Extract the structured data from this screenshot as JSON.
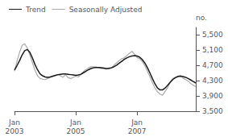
{
  "chart_data": {
    "type": "line",
    "categories": [
      "Jan\n2003",
      null,
      null,
      null,
      null,
      null,
      null,
      null,
      null,
      null,
      null,
      null,
      null,
      null,
      null,
      null,
      null,
      null,
      null,
      null,
      null,
      null,
      null,
      null,
      "Jan\n2005",
      null,
      null,
      null,
      null,
      null,
      null,
      null,
      null,
      null,
      null,
      null,
      null,
      null,
      null,
      null,
      null,
      null,
      null,
      null,
      null,
      null,
      null,
      null,
      "Jan\n2007",
      null,
      null,
      null,
      null,
      null,
      null,
      null,
      null,
      null,
      null,
      null,
      null,
      null,
      null,
      null,
      null,
      null,
      null,
      null,
      null,
      null,
      null,
      null
    ],
    "ylabel": "no.",
    "ylim": [
      3500,
      5700
    ],
    "yticks": [
      3500,
      3900,
      4300,
      4700,
      5100,
      5500
    ],
    "grid": false,
    "legend": "upper left",
    "series": [
      {
        "name": "Trend",
        "color": "#1a1a1a",
        "values": [
          4580,
          4700,
          4830,
          4980,
          5090,
          5120,
          5050,
          4900,
          4730,
          4590,
          4480,
          4430,
          4400,
          4390,
          4400,
          4420,
          4440,
          4460,
          4470,
          4480,
          4480,
          4470,
          4460,
          4450,
          4440,
          4450,
          4470,
          4510,
          4550,
          4590,
          4620,
          4640,
          4650,
          4650,
          4640,
          4630,
          4620,
          4620,
          4640,
          4670,
          4710,
          4760,
          4810,
          4860,
          4900,
          4930,
          4950,
          4960,
          4950,
          4920,
          4860,
          4770,
          4650,
          4510,
          4360,
          4220,
          4110,
          4060,
          4060,
          4110,
          4180,
          4260,
          4330,
          4380,
          4410,
          4420,
          4410,
          4390,
          4360,
          4320,
          4280,
          4240
        ]
      },
      {
        "name": "Seasonally Adjusted",
        "color": "#aaaaaa",
        "values": [
          4550,
          4820,
          5050,
          5230,
          5270,
          5160,
          4980,
          4780,
          4580,
          4430,
          4360,
          4340,
          4330,
          4360,
          4390,
          4410,
          4430,
          4460,
          4430,
          4390,
          4460,
          4380,
          4360,
          4390,
          4420,
          4400,
          4460,
          4540,
          4590,
          4640,
          4670,
          4660,
          4660,
          4640,
          4620,
          4620,
          4600,
          4640,
          4640,
          4710,
          4770,
          4830,
          4880,
          4900,
          4960,
          5020,
          5070,
          5000,
          4910,
          4880,
          4810,
          4700,
          4560,
          4410,
          4250,
          4110,
          4010,
          3950,
          3920,
          4020,
          4120,
          4260,
          4360,
          4390,
          4420,
          4440,
          4370,
          4330,
          4290,
          4230,
          4180,
          4150
        ]
      }
    ]
  }
}
